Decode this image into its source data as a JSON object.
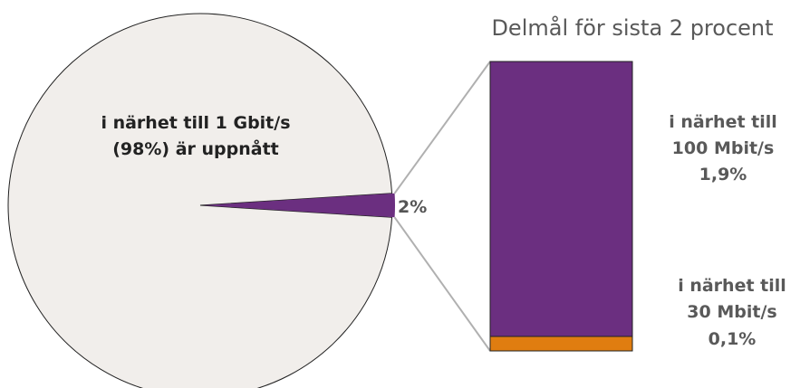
{
  "chart_data": [
    {
      "type": "pie",
      "categories": [
        "i närhet till 1 Gbit/s (98%) är uppnått",
        "2%"
      ],
      "values": [
        98,
        2
      ],
      "labels": {
        "main_line1": "i närhet till 1 Gbit/s",
        "main_line2": "(98%) är uppnått",
        "slice": "2%"
      },
      "colors": {
        "main": "#f1eeeb",
        "slice": "#6b2f80",
        "outline": "#222222"
      }
    },
    {
      "type": "bar",
      "title": "Delmål för sista 2 procent",
      "stacked": true,
      "ylim": [
        0,
        2
      ],
      "series": [
        {
          "values": [
            1.9
          ],
          "label_lines": [
            "i närhet till",
            "100 Mbit/s"
          ],
          "value_label": "1,9%",
          "color": "#6b2f80"
        },
        {
          "values": [
            0.1
          ],
          "label_lines": [
            "i närhet till",
            "30 Mbit/s"
          ],
          "value_label": "0,1%",
          "color": "#e07d10"
        }
      ],
      "connector_color": "#b0b0b0"
    }
  ]
}
